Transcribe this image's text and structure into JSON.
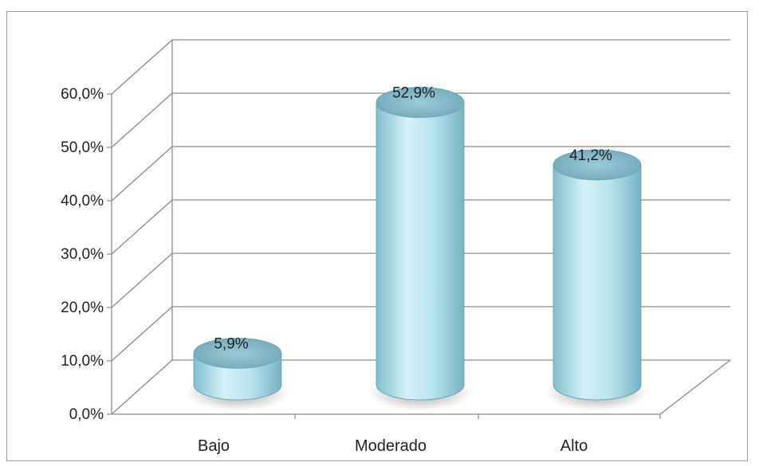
{
  "chart_data": {
    "type": "bar",
    "style": "3d-cylinder",
    "categories": [
      "Bajo",
      "Moderado",
      "Alto"
    ],
    "values": [
      5.9,
      52.9,
      41.2
    ],
    "data_labels": [
      "5,9%",
      "52,9%",
      "41,2%"
    ],
    "y_ticks": [
      "0,0%",
      "10,0%",
      "20,0%",
      "30,0%",
      "40,0%",
      "50,0%",
      "60,0%"
    ],
    "ylim": [
      0,
      60
    ],
    "grid": true,
    "legend": "none",
    "colors": {
      "bar": "#a9dbe6",
      "bar_dark": "#6fb3c4",
      "grid": "#8a8a8a",
      "wall": "#8a8a8a"
    }
  }
}
